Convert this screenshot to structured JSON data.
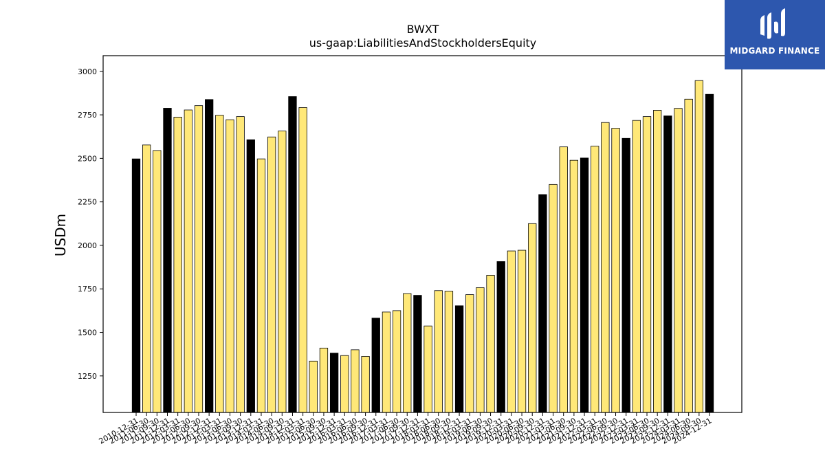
{
  "chart_data": {
    "type": "bar",
    "title": "BWXT",
    "subtitle": "us-gaap:LiabilitiesAndStockholdersEquity",
    "ylabel": "USDm",
    "xlabel": "",
    "ylim": [
      1040,
      3090
    ],
    "yticks": [
      1250,
      1500,
      1750,
      2000,
      2250,
      2500,
      2750,
      3000
    ],
    "grid": false,
    "colors": {
      "annual": "#000000",
      "quarterly": "#ffe878",
      "edge": "#000000"
    },
    "categories": [
      "2010-12-31",
      "2011-06-30",
      "2011-09-30",
      "2011-12-31",
      "2012-03-31",
      "2012-06-30",
      "2012-09-30",
      "2012-12-31",
      "2013-03-31",
      "2013-06-30",
      "2013-09-30",
      "2013-12-31",
      "2014-03-31",
      "2014-06-30",
      "2014-09-30",
      "2014-12-31",
      "2015-03-31",
      "2015-06-30",
      "2015-09-30",
      "2015-12-31",
      "2016-03-31",
      "2016-06-30",
      "2016-09-30",
      "2016-12-31",
      "2017-03-31",
      "2017-06-30",
      "2017-09-30",
      "2017-12-31",
      "2018-03-31",
      "2018-06-30",
      "2018-09-30",
      "2018-12-31",
      "2019-03-31",
      "2019-06-30",
      "2019-09-30",
      "2019-12-31",
      "2020-03-31",
      "2020-06-30",
      "2020-09-30",
      "2020-12-31",
      "2021-03-31",
      "2021-06-30",
      "2021-09-30",
      "2021-12-31",
      "2022-03-31",
      "2022-06-30",
      "2022-09-30",
      "2022-12-31",
      "2023-03-31",
      "2023-06-30",
      "2023-09-30",
      "2023-12-31",
      "2024-03-31",
      "2024-06-30",
      "2024-09-30",
      "2024-12-31"
    ],
    "values": [
      2497,
      2577,
      2545,
      2788,
      2737,
      2778,
      2803,
      2838,
      2748,
      2722,
      2740,
      2607,
      2497,
      2623,
      2657,
      2855,
      2792,
      1335,
      1410,
      1381,
      1367,
      1400,
      1362,
      1582,
      1617,
      1625,
      1723,
      1713,
      1537,
      1740,
      1737,
      1653,
      1717,
      1757,
      1828,
      1907,
      1968,
      1972,
      2125,
      2292,
      2350,
      2566,
      2489,
      2502,
      2570,
      2706,
      2673,
      2615,
      2718,
      2740,
      2776,
      2744,
      2787,
      2840,
      2947,
      2868
    ],
    "annual": [
      true,
      false,
      false,
      true,
      false,
      false,
      false,
      true,
      false,
      false,
      false,
      true,
      false,
      false,
      false,
      true,
      false,
      false,
      false,
      true,
      false,
      false,
      false,
      true,
      false,
      false,
      false,
      true,
      false,
      false,
      false,
      true,
      false,
      false,
      false,
      true,
      false,
      false,
      false,
      true,
      false,
      false,
      false,
      true,
      false,
      false,
      false,
      true,
      false,
      false,
      false,
      true,
      false,
      false,
      false,
      true
    ]
  },
  "logo": {
    "text": "MIDGARD FINANCE",
    "bg_color": "#2d57ae",
    "text_color": "#ffffff"
  }
}
